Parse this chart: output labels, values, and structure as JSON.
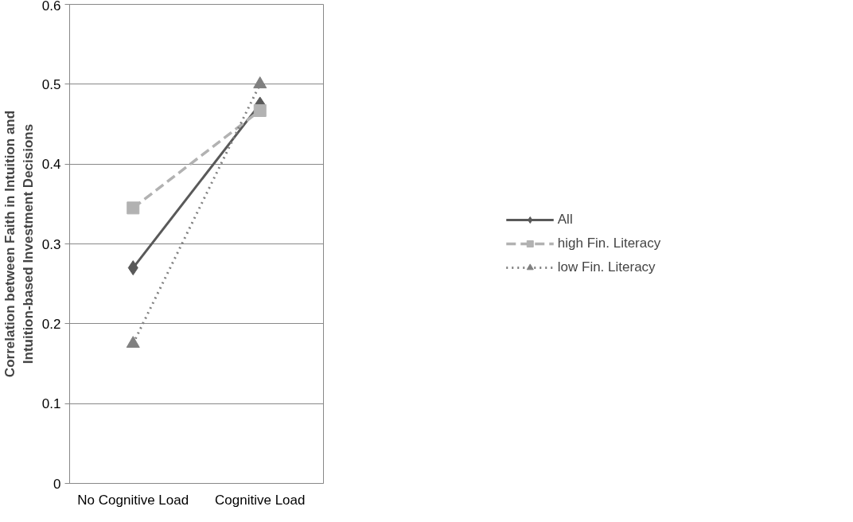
{
  "chart_data": {
    "type": "line",
    "ylabel": "Correlation between Faith in Intuition and\nIntuition-based Investment Decisions",
    "categories": [
      "No Cognitive Load",
      "Cognitive Load"
    ],
    "series": [
      {
        "name": "All",
        "color": "#595959",
        "values": [
          0.27,
          0.475
        ],
        "marker": "diamond",
        "line_style": "solid"
      },
      {
        "name": "high Fin. Literacy",
        "color": "#b2b2b2",
        "values": [
          0.345,
          0.467
        ],
        "marker": "square",
        "line_style": "dashed"
      },
      {
        "name": "low Fin. Literacy",
        "color": "#808080",
        "values": [
          0.175,
          0.5
        ],
        "marker": "triangle",
        "line_style": "dotted"
      }
    ],
    "ylim": [
      0,
      0.6
    ],
    "yticks": [
      0,
      0.1,
      0.2,
      0.3,
      0.4,
      0.5,
      0.6
    ],
    "grid": "y",
    "legend": "right"
  }
}
